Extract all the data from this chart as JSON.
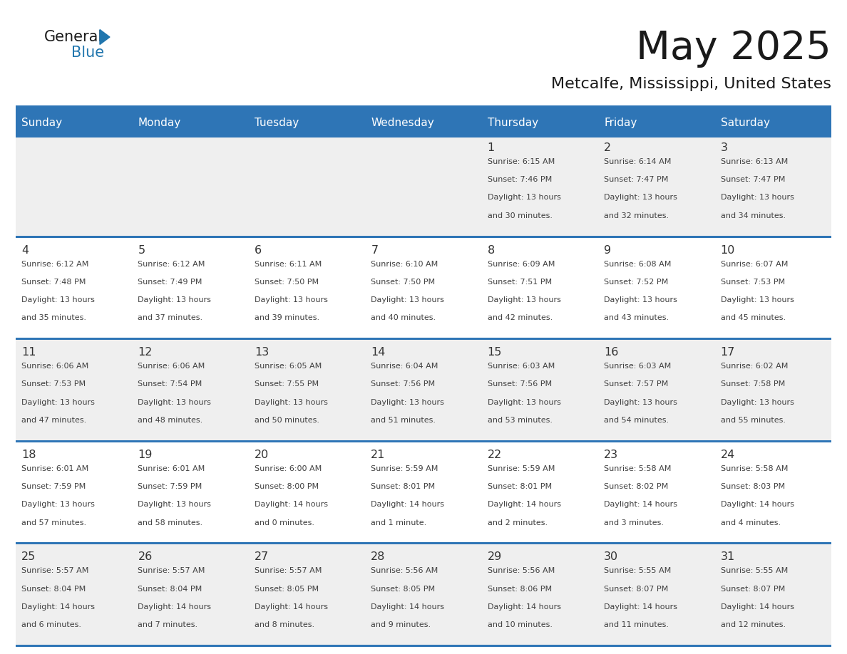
{
  "title": "May 2025",
  "subtitle": "Metcalfe, Mississippi, United States",
  "header_color": "#2E75B6",
  "header_text_color": "#FFFFFF",
  "grid_line_color": "#2E75B6",
  "day_names": [
    "Sunday",
    "Monday",
    "Tuesday",
    "Wednesday",
    "Thursday",
    "Friday",
    "Saturday"
  ],
  "bg_color": "#FFFFFF",
  "cell_bg_light": "#EFEFEF",
  "cell_bg_white": "#FFFFFF",
  "text_color": "#404040",
  "num_color": "#333333",
  "days": [
    {
      "day": 1,
      "col": 4,
      "row": 0,
      "sunrise": "6:15 AM",
      "sunset": "7:46 PM",
      "daylight": "13 hours and 30 minutes."
    },
    {
      "day": 2,
      "col": 5,
      "row": 0,
      "sunrise": "6:14 AM",
      "sunset": "7:47 PM",
      "daylight": "13 hours and 32 minutes."
    },
    {
      "day": 3,
      "col": 6,
      "row": 0,
      "sunrise": "6:13 AM",
      "sunset": "7:47 PM",
      "daylight": "13 hours and 34 minutes."
    },
    {
      "day": 4,
      "col": 0,
      "row": 1,
      "sunrise": "6:12 AM",
      "sunset": "7:48 PM",
      "daylight": "13 hours and 35 minutes."
    },
    {
      "day": 5,
      "col": 1,
      "row": 1,
      "sunrise": "6:12 AM",
      "sunset": "7:49 PM",
      "daylight": "13 hours and 37 minutes."
    },
    {
      "day": 6,
      "col": 2,
      "row": 1,
      "sunrise": "6:11 AM",
      "sunset": "7:50 PM",
      "daylight": "13 hours and 39 minutes."
    },
    {
      "day": 7,
      "col": 3,
      "row": 1,
      "sunrise": "6:10 AM",
      "sunset": "7:50 PM",
      "daylight": "13 hours and 40 minutes."
    },
    {
      "day": 8,
      "col": 4,
      "row": 1,
      "sunrise": "6:09 AM",
      "sunset": "7:51 PM",
      "daylight": "13 hours and 42 minutes."
    },
    {
      "day": 9,
      "col": 5,
      "row": 1,
      "sunrise": "6:08 AM",
      "sunset": "7:52 PM",
      "daylight": "13 hours and 43 minutes."
    },
    {
      "day": 10,
      "col": 6,
      "row": 1,
      "sunrise": "6:07 AM",
      "sunset": "7:53 PM",
      "daylight": "13 hours and 45 minutes."
    },
    {
      "day": 11,
      "col": 0,
      "row": 2,
      "sunrise": "6:06 AM",
      "sunset": "7:53 PM",
      "daylight": "13 hours and 47 minutes."
    },
    {
      "day": 12,
      "col": 1,
      "row": 2,
      "sunrise": "6:06 AM",
      "sunset": "7:54 PM",
      "daylight": "13 hours and 48 minutes."
    },
    {
      "day": 13,
      "col": 2,
      "row": 2,
      "sunrise": "6:05 AM",
      "sunset": "7:55 PM",
      "daylight": "13 hours and 50 minutes."
    },
    {
      "day": 14,
      "col": 3,
      "row": 2,
      "sunrise": "6:04 AM",
      "sunset": "7:56 PM",
      "daylight": "13 hours and 51 minutes."
    },
    {
      "day": 15,
      "col": 4,
      "row": 2,
      "sunrise": "6:03 AM",
      "sunset": "7:56 PM",
      "daylight": "13 hours and 53 minutes."
    },
    {
      "day": 16,
      "col": 5,
      "row": 2,
      "sunrise": "6:03 AM",
      "sunset": "7:57 PM",
      "daylight": "13 hours and 54 minutes."
    },
    {
      "day": 17,
      "col": 6,
      "row": 2,
      "sunrise": "6:02 AM",
      "sunset": "7:58 PM",
      "daylight": "13 hours and 55 minutes."
    },
    {
      "day": 18,
      "col": 0,
      "row": 3,
      "sunrise": "6:01 AM",
      "sunset": "7:59 PM",
      "daylight": "13 hours and 57 minutes."
    },
    {
      "day": 19,
      "col": 1,
      "row": 3,
      "sunrise": "6:01 AM",
      "sunset": "7:59 PM",
      "daylight": "13 hours and 58 minutes."
    },
    {
      "day": 20,
      "col": 2,
      "row": 3,
      "sunrise": "6:00 AM",
      "sunset": "8:00 PM",
      "daylight": "14 hours and 0 minutes."
    },
    {
      "day": 21,
      "col": 3,
      "row": 3,
      "sunrise": "5:59 AM",
      "sunset": "8:01 PM",
      "daylight": "14 hours and 1 minute."
    },
    {
      "day": 22,
      "col": 4,
      "row": 3,
      "sunrise": "5:59 AM",
      "sunset": "8:01 PM",
      "daylight": "14 hours and 2 minutes."
    },
    {
      "day": 23,
      "col": 5,
      "row": 3,
      "sunrise": "5:58 AM",
      "sunset": "8:02 PM",
      "daylight": "14 hours and 3 minutes."
    },
    {
      "day": 24,
      "col": 6,
      "row": 3,
      "sunrise": "5:58 AM",
      "sunset": "8:03 PM",
      "daylight": "14 hours and 4 minutes."
    },
    {
      "day": 25,
      "col": 0,
      "row": 4,
      "sunrise": "5:57 AM",
      "sunset": "8:04 PM",
      "daylight": "14 hours and 6 minutes."
    },
    {
      "day": 26,
      "col": 1,
      "row": 4,
      "sunrise": "5:57 AM",
      "sunset": "8:04 PM",
      "daylight": "14 hours and 7 minutes."
    },
    {
      "day": 27,
      "col": 2,
      "row": 4,
      "sunrise": "5:57 AM",
      "sunset": "8:05 PM",
      "daylight": "14 hours and 8 minutes."
    },
    {
      "day": 28,
      "col": 3,
      "row": 4,
      "sunrise": "5:56 AM",
      "sunset": "8:05 PM",
      "daylight": "14 hours and 9 minutes."
    },
    {
      "day": 29,
      "col": 4,
      "row": 4,
      "sunrise": "5:56 AM",
      "sunset": "8:06 PM",
      "daylight": "14 hours and 10 minutes."
    },
    {
      "day": 30,
      "col": 5,
      "row": 4,
      "sunrise": "5:55 AM",
      "sunset": "8:07 PM",
      "daylight": "14 hours and 11 minutes."
    },
    {
      "day": 31,
      "col": 6,
      "row": 4,
      "sunrise": "5:55 AM",
      "sunset": "8:07 PM",
      "daylight": "14 hours and 12 minutes."
    }
  ],
  "logo_color_general": "#1a1a1a",
  "logo_color_blue": "#2176AE",
  "logo_triangle_color": "#2176AE"
}
